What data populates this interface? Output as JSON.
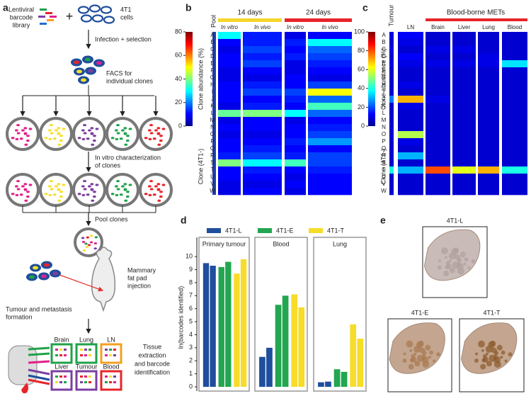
{
  "panel_labels": [
    "a",
    "b",
    "c",
    "d",
    "e"
  ],
  "panel_a": {
    "library": [
      "Lentiviral",
      "barcode",
      "library"
    ],
    "plus": "+",
    "cells": [
      "4T1",
      "cells"
    ],
    "infection": "Infection + selection",
    "facs": [
      "FACS for",
      "individual clones"
    ],
    "invitro": [
      "In vitro characterization",
      "of clones"
    ],
    "pool": "Pool clones",
    "injection": [
      "Mammary",
      "fat pad",
      "injection"
    ],
    "formation": [
      "Tumour and metastasis",
      "formation"
    ],
    "tissues": [
      "Brain",
      "Lung",
      "LN",
      "Liver",
      "Tumour",
      "Blood"
    ],
    "extraction": [
      "Tissue",
      "extraction",
      "and barcode",
      "identification"
    ]
  },
  "heatmap_b": {
    "type": "heatmap",
    "pool_label": "Pool",
    "time_groups": [
      "14 days",
      "24 days"
    ],
    "groups": [
      "In vitro",
      "In vivo",
      "In vitro",
      "In vivo"
    ],
    "ylabel": "Clone (4T1-)",
    "colorbar_label": "Clone abundance (%)",
    "clim": [
      0,
      80
    ],
    "cticks": [
      0,
      20,
      40,
      60,
      80
    ],
    "clones": [
      "A",
      "B",
      "C",
      "D",
      "E",
      "F",
      "G",
      "H",
      "I",
      "J",
      "K",
      "L",
      "M",
      "N",
      "O",
      "P",
      "Q",
      "R",
      "S",
      "T",
      "U",
      "V",
      "W"
    ],
    "values": [
      [
        30,
        12,
        8,
        10
      ],
      [
        10,
        12,
        12,
        30
      ],
      [
        8,
        15,
        10,
        18
      ],
      [
        10,
        12,
        12,
        15
      ],
      [
        10,
        15,
        8,
        12
      ],
      [
        8,
        10,
        8,
        10
      ],
      [
        8,
        8,
        10,
        8
      ],
      [
        10,
        12,
        10,
        15
      ],
      [
        10,
        15,
        15,
        50
      ],
      [
        10,
        10,
        12,
        18
      ],
      [
        8,
        12,
        10,
        35
      ],
      [
        38,
        40,
        30,
        18
      ],
      [
        8,
        10,
        8,
        10
      ],
      [
        10,
        10,
        10,
        12
      ],
      [
        8,
        8,
        10,
        15
      ],
      [
        10,
        10,
        12,
        22
      ],
      [
        10,
        12,
        10,
        10
      ],
      [
        12,
        15,
        12,
        15
      ],
      [
        40,
        30,
        35,
        15
      ],
      [
        10,
        12,
        10,
        12
      ],
      [
        10,
        10,
        8,
        10
      ],
      [
        8,
        8,
        10,
        10
      ],
      [
        8,
        10,
        8,
        10
      ]
    ]
  },
  "heatmap_c": {
    "type": "heatmap",
    "header": "Blood-borne METs",
    "groups": [
      "Tumour",
      "LN",
      "Brain",
      "Liver",
      "Lung",
      "Blood"
    ],
    "ylabel": "Clone (4T1-)",
    "colorbar_label": "Clone abundance (%)",
    "clim": [
      0,
      100
    ],
    "cticks": [
      0,
      20,
      40,
      60,
      80,
      100
    ],
    "clones": [
      "A",
      "B",
      "C",
      "D",
      "E",
      "F",
      "G",
      "H",
      "I",
      "J",
      "K",
      "L",
      "M",
      "N",
      "O",
      "P",
      "Q",
      "R",
      "S",
      "T",
      "U",
      "V",
      "W"
    ],
    "values": [
      [
        10,
        12,
        8,
        8,
        8,
        8
      ],
      [
        8,
        10,
        8,
        8,
        8,
        8
      ],
      [
        10,
        8,
        10,
        10,
        8,
        8
      ],
      [
        8,
        12,
        8,
        8,
        10,
        8
      ],
      [
        10,
        10,
        10,
        10,
        10,
        35
      ],
      [
        8,
        8,
        8,
        8,
        8,
        8
      ],
      [
        8,
        8,
        8,
        8,
        8,
        8
      ],
      [
        8,
        10,
        8,
        8,
        8,
        8
      ],
      [
        8,
        8,
        8,
        8,
        8,
        8
      ],
      [
        25,
        70,
        10,
        8,
        8,
        8
      ],
      [
        8,
        10,
        8,
        8,
        8,
        8
      ],
      [
        8,
        8,
        8,
        8,
        8,
        8
      ],
      [
        8,
        8,
        8,
        8,
        8,
        8
      ],
      [
        8,
        8,
        8,
        8,
        8,
        8
      ],
      [
        8,
        55,
        8,
        8,
        8,
        8
      ],
      [
        8,
        10,
        8,
        8,
        8,
        8
      ],
      [
        8,
        8,
        8,
        8,
        8,
        8
      ],
      [
        8,
        30,
        8,
        8,
        8,
        8
      ],
      [
        8,
        8,
        8,
        8,
        8,
        8
      ],
      [
        40,
        30,
        80,
        60,
        70,
        40
      ],
      [
        8,
        8,
        8,
        8,
        8,
        8
      ],
      [
        8,
        8,
        8,
        8,
        8,
        8
      ],
      [
        8,
        8,
        8,
        8,
        8,
        8
      ]
    ]
  },
  "chart_data": {
    "type": "bar",
    "ylabel": "ln(barcodes identified)",
    "categories": [
      "Primary tumour",
      "Blood",
      "Lung"
    ],
    "series": [
      {
        "name": "4T1-L",
        "color": "#1f4e9c",
        "values": [
          [
            9.5,
            9.3
          ],
          [
            2.3,
            3.0
          ],
          [
            0.35,
            0.4
          ]
        ]
      },
      {
        "name": "4T1-E",
        "color": "#22a650",
        "values": [
          [
            9.2,
            9.6
          ],
          [
            6.3,
            7.0
          ],
          [
            1.35,
            1.15
          ]
        ]
      },
      {
        "name": "4T1-T",
        "color": "#f7dc2a",
        "values": [
          [
            8.7,
            9.8
          ],
          [
            7.1,
            6.1
          ],
          [
            4.8,
            3.7
          ]
        ]
      }
    ],
    "ylim": [
      0,
      10.5
    ],
    "yticks": [
      0,
      1,
      2,
      3,
      4,
      5,
      6,
      7,
      8,
      9,
      10
    ]
  },
  "panel_e": {
    "labels": [
      "4T1-L",
      "4T1-E",
      "4T1-T"
    ]
  }
}
